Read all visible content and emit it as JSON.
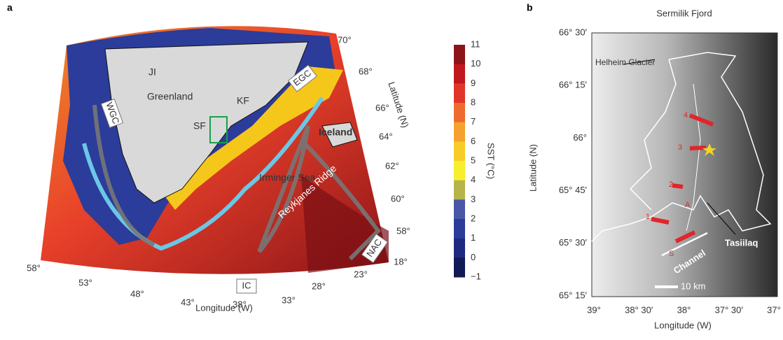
{
  "panel_a": {
    "label": "a",
    "map_labels": {
      "ji": "JI",
      "greenland": "Greenland",
      "kf": "KF",
      "egc": "EGC",
      "wgc": "WGC",
      "sf": "SF",
      "iceland": "Iceland",
      "irminger": "Irminger Sea",
      "reykjanes": "Reykjanes Ridge",
      "ic": "IC",
      "nac": "NAC"
    },
    "lat_ticks": [
      "70°",
      "68°",
      "66°",
      "64°",
      "62°",
      "60°",
      "58°"
    ],
    "lon_ticks": [
      "58°",
      "53°",
      "48°",
      "43°",
      "38°",
      "33°",
      "28°",
      "23°",
      "18°"
    ],
    "x_label": "Longitude (W)",
    "y_label": "Latitude (N)",
    "colorbar": {
      "label": "SST (°C)",
      "ticks": [
        "11",
        "10",
        "9",
        "8",
        "7",
        "6",
        "5",
        "4",
        "3",
        "2",
        "1",
        "0",
        "−1"
      ]
    }
  },
  "panel_b": {
    "label": "b",
    "title": "Sermilik Fjord",
    "y_ticks": [
      "66° 30′",
      "66° 15′",
      "66°",
      "65° 45′",
      "65° 30′",
      "65° 15′"
    ],
    "x_ticks": [
      "39°",
      "38° 30′",
      "38°",
      "37° 30′",
      "37°"
    ],
    "x_label": "Longitude (W)",
    "y_label": "Latitude (N)",
    "glacier": "Helheim Glacier",
    "town": "Tasiilaq",
    "channel": "Channel",
    "scale": "10 km",
    "stations": [
      "4",
      "3",
      "2",
      "1",
      "S"
    ],
    "mooring": "A"
  }
}
